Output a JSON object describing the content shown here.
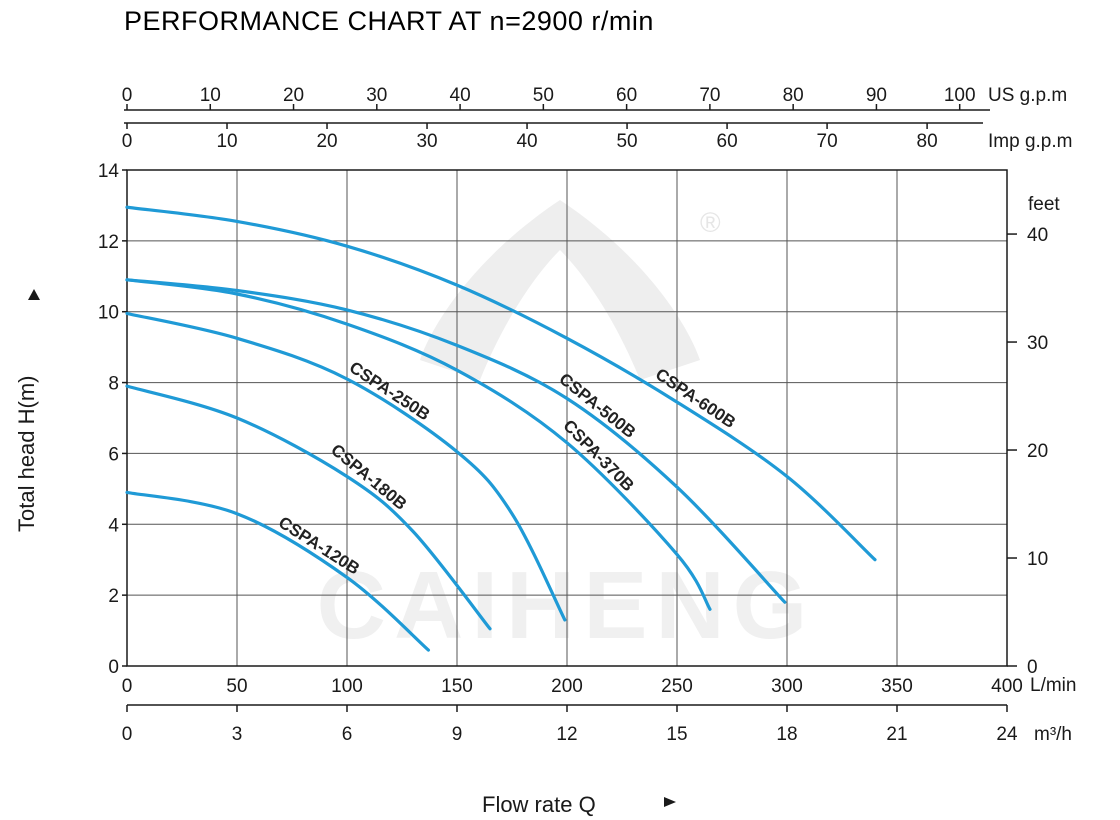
{
  "chart_data": {
    "type": "line",
    "title": "PERFORMANCE CHART AT n=2900 r/min",
    "xlabel": "Flow rate  Q",
    "ylabel": "Total  head H(m)",
    "xlim": [
      0,
      400
    ],
    "ylim": [
      0,
      14
    ],
    "grid": true,
    "x_ticks_lpm": [
      "0",
      "50",
      "100",
      "150",
      "200",
      "250",
      "300",
      "350",
      "400"
    ],
    "x_unit_lpm": "L/min",
    "x_ticks_m3h": [
      {
        "label": "0",
        "at": 0
      },
      {
        "label": "3",
        "at": 50
      },
      {
        "label": "6",
        "at": 100
      },
      {
        "label": "9",
        "at": 150
      },
      {
        "label": "12",
        "at": 200
      },
      {
        "label": "15",
        "at": 250
      },
      {
        "label": "18",
        "at": 300
      },
      {
        "label": "21",
        "at": 350
      },
      {
        "label": "24",
        "at": 400
      }
    ],
    "x_unit_m3h": "m³/h",
    "x_ticks_usgpm": [
      {
        "label": "0",
        "at": 0
      },
      {
        "label": "10",
        "at": 37.85
      },
      {
        "label": "20",
        "at": 75.7
      },
      {
        "label": "30",
        "at": 113.55
      },
      {
        "label": "40",
        "at": 151.4
      },
      {
        "label": "50",
        "at": 189.25
      },
      {
        "label": "60",
        "at": 227.1
      },
      {
        "label": "70",
        "at": 264.95
      },
      {
        "label": "80",
        "at": 302.8
      },
      {
        "label": "90",
        "at": 340.65
      },
      {
        "label": "100",
        "at": 378.5
      }
    ],
    "x_unit_usgpm": "US g.p.m",
    "x_ticks_impgpm": [
      {
        "label": "0",
        "at": 0
      },
      {
        "label": "10",
        "at": 45.46
      },
      {
        "label": "20",
        "at": 90.92
      },
      {
        "label": "30",
        "at": 136.38
      },
      {
        "label": "40",
        "at": 181.84
      },
      {
        "label": "50",
        "at": 227.3
      },
      {
        "label": "60",
        "at": 272.76
      },
      {
        "label": "70",
        "at": 318.22
      },
      {
        "label": "80",
        "at": 363.68
      }
    ],
    "x_unit_impgpm": "Imp g.p.m",
    "y_ticks": [
      "0",
      "2",
      "4",
      "6",
      "8",
      "10",
      "12",
      "14"
    ],
    "y2_ticks": [
      {
        "label": "0",
        "at": 0
      },
      {
        "label": "10",
        "at": 3.048
      },
      {
        "label": "20",
        "at": 6.096
      },
      {
        "label": "30",
        "at": 9.144
      },
      {
        "label": "40",
        "at": 12.192
      }
    ],
    "y2_unit": "feet",
    "series": [
      {
        "name": "CSPA-600B",
        "x": [
          0,
          50,
          100,
          150,
          200,
          250,
          300,
          340
        ],
        "y": [
          12.95,
          12.55,
          11.85,
          10.75,
          9.25,
          7.45,
          5.35,
          3.0
        ]
      },
      {
        "name": "CSPA-500B",
        "x": [
          0,
          50,
          100,
          150,
          200,
          250,
          299
        ],
        "y": [
          10.9,
          10.6,
          10.05,
          9.05,
          7.55,
          5.05,
          1.8
        ]
      },
      {
        "name": "CSPA-370B",
        "x": [
          0,
          50,
          100,
          150,
          200,
          250,
          265
        ],
        "y": [
          10.9,
          10.5,
          9.65,
          8.35,
          6.3,
          3.15,
          1.6
        ]
      },
      {
        "name": "CSPA-250B",
        "x": [
          0,
          50,
          100,
          150,
          175,
          199
        ],
        "y": [
          9.95,
          9.25,
          8.1,
          6.05,
          4.3,
          1.3
        ]
      },
      {
        "name": "CSPA-180B",
        "x": [
          0,
          50,
          100,
          130,
          165
        ],
        "y": [
          7.9,
          7.0,
          5.35,
          3.8,
          1.05
        ]
      },
      {
        "name": "CSPA-120B",
        "x": [
          0,
          50,
          100,
          137
        ],
        "y": [
          4.9,
          4.3,
          2.5,
          0.45
        ]
      }
    ],
    "colors": {
      "curve": "#1f9ad6",
      "grid": "#555555",
      "axis": "#1a1a1a"
    }
  },
  "watermark": {
    "text": "CAIHENG",
    "mark": "®"
  }
}
